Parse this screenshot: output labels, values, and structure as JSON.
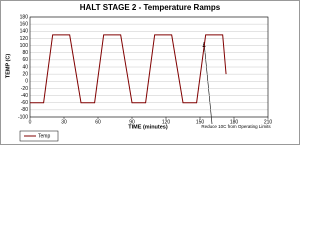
{
  "chart_data": {
    "type": "line",
    "title": "HALT STAGE 2 - Temperature Ramps",
    "x_label": "TIME (minutes)",
    "y_label": "TEMP (C)",
    "annotation": "Reduce 10C from Operating Limits",
    "x": [
      0,
      12,
      20,
      35,
      45,
      57,
      65,
      80,
      90,
      102,
      110,
      125,
      135,
      147,
      155,
      170,
      173
    ],
    "series": [
      {
        "name": "Temp",
        "color": "#800000",
        "values": [
          -60,
          -60,
          130,
          130,
          -60,
          -60,
          130,
          130,
          -60,
          -60,
          130,
          130,
          -60,
          -60,
          130,
          130,
          20
        ]
      }
    ],
    "xlim": [
      0,
      210
    ],
    "xticks": [
      0,
      30,
      60,
      90,
      120,
      150,
      180,
      210
    ],
    "ylim": [
      -100,
      180
    ],
    "yticks": [
      -100,
      -80,
      -60,
      -40,
      -20,
      0,
      20,
      40,
      60,
      80,
      100,
      120,
      140,
      160,
      180
    ],
    "grid": true
  }
}
